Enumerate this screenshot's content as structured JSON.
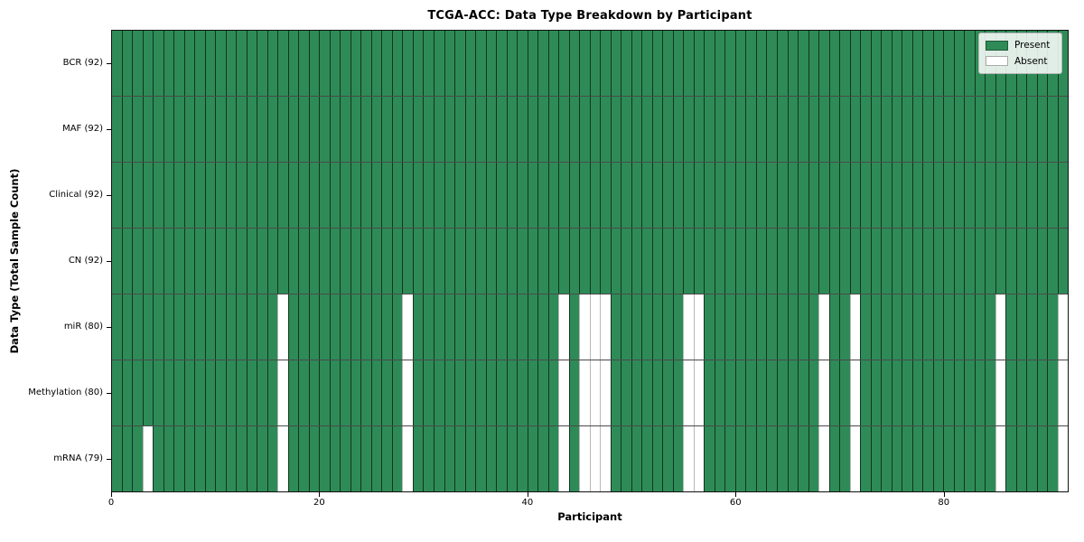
{
  "chart_data": {
    "type": "heatmap",
    "title": "TCGA-ACC: Data Type Breakdown by Participant",
    "xlabel": "Participant",
    "ylabel": "Data Type (Total Sample Count)",
    "n_participants": 92,
    "xlim": [
      0,
      92
    ],
    "x_ticks": [
      0,
      20,
      40,
      60,
      80
    ],
    "grid": false,
    "legend": [
      "Present",
      "Absent"
    ],
    "legend_position": "upper right",
    "colors": {
      "present": "#2e8b57",
      "absent": "#ffffff"
    },
    "rows": [
      {
        "name": "BCR",
        "label": "BCR (92)",
        "total": 92,
        "absent_participants": []
      },
      {
        "name": "MAF",
        "label": "MAF (92)",
        "total": 92,
        "absent_participants": []
      },
      {
        "name": "Clinical",
        "label": "Clinical (92)",
        "total": 92,
        "absent_participants": []
      },
      {
        "name": "CN",
        "label": "CN (92)",
        "total": 92,
        "absent_participants": []
      },
      {
        "name": "miR",
        "label": "miR (80)",
        "total": 80,
        "absent_participants": [
          16,
          28,
          43,
          45,
          46,
          47,
          55,
          56,
          68,
          71,
          85,
          91
        ]
      },
      {
        "name": "Methylation",
        "label": "Methylation (80)",
        "total": 80,
        "absent_participants": [
          16,
          28,
          43,
          45,
          46,
          47,
          55,
          56,
          68,
          71,
          85,
          91
        ]
      },
      {
        "name": "mRNA",
        "label": "mRNA (79)",
        "total": 79,
        "absent_participants": [
          3,
          16,
          28,
          43,
          45,
          46,
          47,
          55,
          56,
          68,
          71,
          85,
          91
        ]
      }
    ]
  }
}
